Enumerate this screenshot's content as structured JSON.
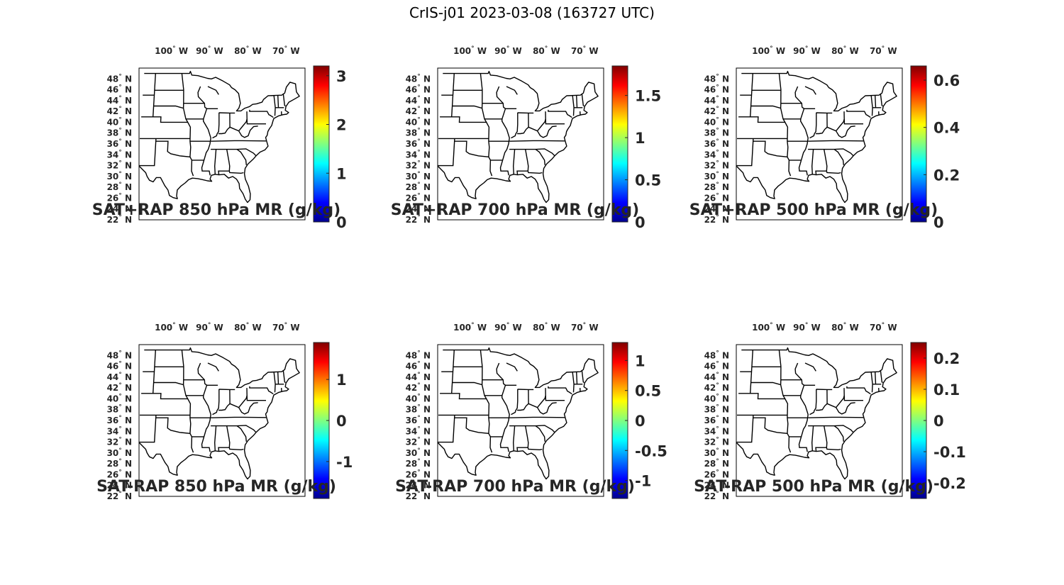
{
  "figure": {
    "title": "CrIS-j01 2023-03-08 (163727 UTC)"
  },
  "map": {
    "lon_labels": [
      "100",
      "90",
      "80",
      "70"
    ],
    "lon_suffix": "W",
    "lat_labels": [
      "48",
      "46",
      "44",
      "42",
      "40",
      "38",
      "36",
      "34",
      "32",
      "30",
      "28",
      "26",
      "24",
      "22"
    ],
    "lat_suffix": "N",
    "degree_symbol": "°"
  },
  "colormap": [
    "#00008f",
    "#0000ff",
    "#0080ff",
    "#00ffff",
    "#80ff80",
    "#ffff00",
    "#ff8000",
    "#ff0000",
    "#800000"
  ],
  "panels": [
    {
      "title": "SAT+RAP 850 hPa MR (g/kg)",
      "colorbar": {
        "min": 0,
        "max": 3.2,
        "ticks": [
          "0",
          "1",
          "2",
          "3"
        ],
        "tick_values": [
          0,
          1,
          2,
          3
        ]
      }
    },
    {
      "title": "SAT+RAP 700 hPa MR (g/kg)",
      "colorbar": {
        "min": 0,
        "max": 1.85,
        "ticks": [
          "0",
          "0.5",
          "1",
          "1.5"
        ],
        "tick_values": [
          0,
          0.5,
          1,
          1.5
        ]
      }
    },
    {
      "title": "SAT+RAP 500 hPa MR (g/kg)",
      "colorbar": {
        "min": 0,
        "max": 0.66,
        "ticks": [
          "0",
          "0.2",
          "0.4",
          "0.6"
        ],
        "tick_values": [
          0,
          0.2,
          0.4,
          0.6
        ]
      }
    },
    {
      "title": "SAT-RAP 850 hPa MR (g/kg)",
      "colorbar": {
        "min": -1.9,
        "max": 1.9,
        "ticks": [
          "-1",
          "0",
          "1"
        ],
        "tick_values": [
          -1,
          0,
          1
        ]
      }
    },
    {
      "title": "SAT-RAP 700 hPa MR (g/kg)",
      "colorbar": {
        "min": -1.3,
        "max": 1.3,
        "ticks": [
          "-1",
          "-0.5",
          "0",
          "0.5",
          "1"
        ],
        "tick_values": [
          -1,
          -0.5,
          0,
          0.5,
          1
        ]
      }
    },
    {
      "title": "SAT-RAP 500 hPa MR (g/kg)",
      "colorbar": {
        "min": -0.25,
        "max": 0.25,
        "ticks": [
          "-0.2",
          "-0.1",
          "0",
          "0.1",
          "0.2"
        ],
        "tick_values": [
          -0.2,
          -0.1,
          0,
          0.1,
          0.2
        ]
      }
    }
  ]
}
